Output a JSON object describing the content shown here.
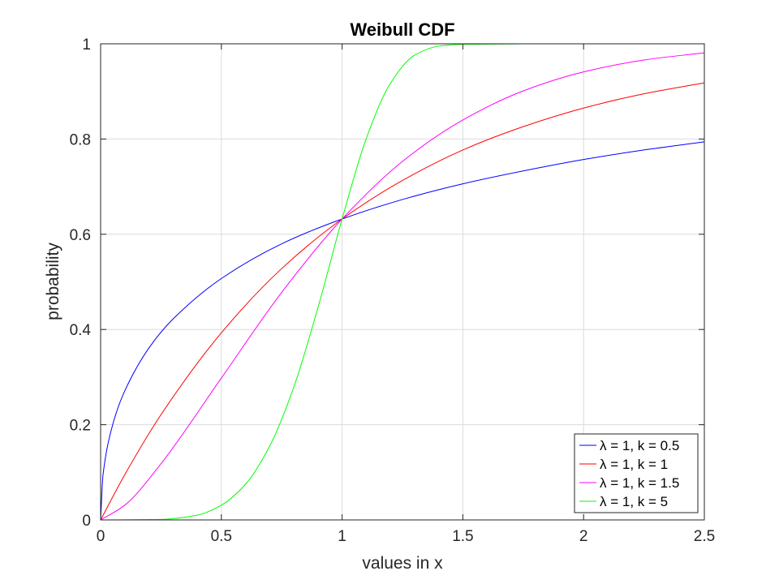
{
  "chart_data": {
    "type": "line",
    "title": "Weibull CDF",
    "xlabel": "values in x",
    "ylabel": "probability",
    "xlim": [
      0,
      2.5
    ],
    "ylim": [
      0,
      1
    ],
    "x_ticks": [
      0,
      0.5,
      1,
      1.5,
      2,
      2.5
    ],
    "x_tick_labels": [
      "0",
      "0.5",
      "1",
      "1.5",
      "2",
      "2.5"
    ],
    "y_ticks": [
      0,
      0.2,
      0.4,
      0.6,
      0.8,
      1
    ],
    "y_tick_labels": [
      "0",
      "0.2",
      "0.4",
      "0.6",
      "0.8",
      "1"
    ],
    "grid": true,
    "legend_position": "bottom-right",
    "series": [
      {
        "name": "λ = 1, k = 0.5",
        "color": "#0000ff",
        "x": [
          0,
          0.01,
          0.05,
          0.1,
          0.2,
          0.3,
          0.5,
          0.75,
          1,
          1.25,
          1.5,
          1.75,
          2,
          2.25,
          2.5
        ],
        "y": [
          0,
          0.095,
          0.2,
          0.271,
          0.361,
          0.422,
          0.507,
          0.58,
          0.632,
          0.673,
          0.706,
          0.733,
          0.757,
          0.777,
          0.794
        ]
      },
      {
        "name": "λ = 1, k = 1",
        "color": "#ff0000",
        "x": [
          0,
          0.1,
          0.25,
          0.5,
          0.75,
          1,
          1.25,
          1.5,
          1.75,
          2,
          2.25,
          2.5
        ],
        "y": [
          0,
          0.095,
          0.221,
          0.393,
          0.528,
          0.632,
          0.713,
          0.777,
          0.826,
          0.865,
          0.895,
          0.918
        ]
      },
      {
        "name": "λ = 1, k = 1.5",
        "color": "#ff00ff",
        "x": [
          0,
          0.1,
          0.25,
          0.5,
          0.75,
          1,
          1.25,
          1.5,
          1.75,
          2,
          2.25,
          2.5
        ],
        "y": [
          0,
          0.031,
          0.118,
          0.298,
          0.478,
          0.632,
          0.753,
          0.84,
          0.901,
          0.941,
          0.966,
          0.981
        ]
      },
      {
        "name": "λ = 1, k = 5",
        "color": "#00ff00",
        "x": [
          0,
          0.25,
          0.4,
          0.5,
          0.6,
          0.7,
          0.8,
          0.9,
          1,
          1.1,
          1.2,
          1.3,
          1.4,
          1.5,
          1.75,
          2,
          2.5
        ],
        "y": [
          0,
          0.001,
          0.01,
          0.031,
          0.075,
          0.155,
          0.279,
          0.446,
          0.632,
          0.801,
          0.917,
          0.976,
          0.995,
          0.999,
          1,
          1,
          1
        ]
      }
    ]
  }
}
